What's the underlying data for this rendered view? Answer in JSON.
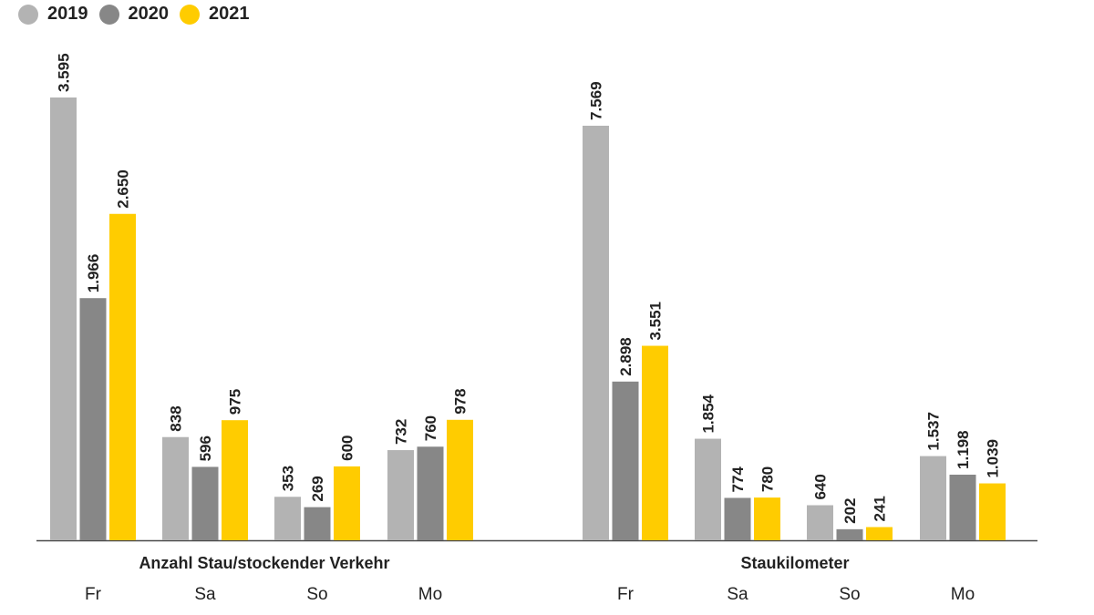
{
  "chart_data": {
    "type": "bar",
    "legend_position": "top-left",
    "series_names": [
      "2019",
      "2020",
      "2021"
    ],
    "colors": [
      "#b3b3b3",
      "#878787",
      "#ffcc00"
    ],
    "panels": [
      {
        "title": "Anzahl Stau/stockender Verkehr",
        "categories": [
          "Fr",
          "Sa",
          "So",
          "Mo"
        ],
        "ylim": [
          0,
          3595
        ],
        "series": [
          {
            "name": "2019",
            "values": [
              3595,
              838,
              353,
              732
            ],
            "labels": [
              "3.595",
              "838",
              "353",
              "732"
            ]
          },
          {
            "name": "2020",
            "values": [
              1966,
              596,
              269,
              760
            ],
            "labels": [
              "1.966",
              "596",
              "269",
              "760"
            ]
          },
          {
            "name": "2021",
            "values": [
              2650,
              975,
              600,
              978
            ],
            "labels": [
              "2.650",
              "975",
              "600",
              "978"
            ]
          }
        ]
      },
      {
        "title": "Staukilometer",
        "categories": [
          "Fr",
          "Sa",
          "So",
          "Mo"
        ],
        "ylim": [
          0,
          7569
        ],
        "series": [
          {
            "name": "2019",
            "values": [
              7569,
              1854,
              640,
              1537
            ],
            "labels": [
              "7.569",
              "1.854",
              "640",
              "1.537"
            ]
          },
          {
            "name": "2020",
            "values": [
              2898,
              774,
              202,
              1198
            ],
            "labels": [
              "2.898",
              "774",
              "202",
              "1.198"
            ]
          },
          {
            "name": "2021",
            "values": [
              3551,
              780,
              241,
              1039
            ],
            "labels": [
              "3.551",
              "780",
              "241",
              "1.039"
            ]
          }
        ]
      }
    ]
  }
}
